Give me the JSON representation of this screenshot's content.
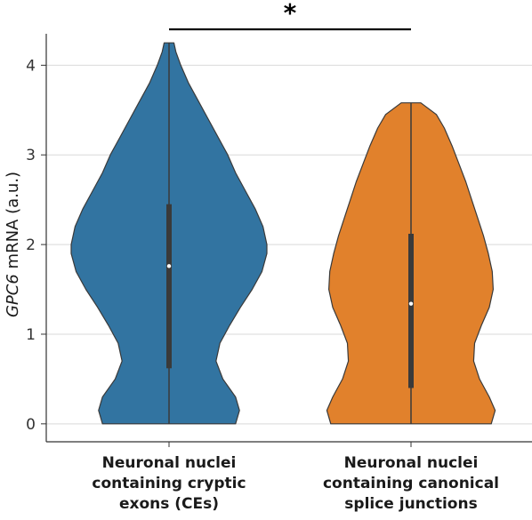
{
  "chart_data": {
    "type": "violin",
    "title": "",
    "ylabel_italic": "GPC6",
    "ylabel_rest": " mRNA (a.u.)",
    "xlabel": "",
    "ylim": [
      -0.2,
      4.45
    ],
    "yticks": [
      "0",
      "1",
      "2",
      "3",
      "4"
    ],
    "grid": "horizontal",
    "legend": "none",
    "categories": [
      {
        "lines": [
          "Neuronal nuclei",
          "containing cryptic",
          "exons (CEs)"
        ]
      },
      {
        "lines": [
          "Neuronal nuclei",
          "containing canonical",
          "splice junctions"
        ]
      }
    ],
    "series": [
      {
        "color": "#3274a1",
        "min": 0,
        "max": 4.25,
        "q1": 0.62,
        "median": 1.76,
        "q3": 2.45,
        "density": [
          [
            0,
            0.68
          ],
          [
            0.15,
            0.72
          ],
          [
            0.3,
            0.68
          ],
          [
            0.5,
            0.55
          ],
          [
            0.7,
            0.48
          ],
          [
            0.9,
            0.52
          ],
          [
            1.1,
            0.62
          ],
          [
            1.3,
            0.73
          ],
          [
            1.5,
            0.85
          ],
          [
            1.7,
            0.95
          ],
          [
            1.9,
            1.0
          ],
          [
            2.0,
            1.0
          ],
          [
            2.2,
            0.96
          ],
          [
            2.4,
            0.88
          ],
          [
            2.6,
            0.78
          ],
          [
            2.8,
            0.68
          ],
          [
            3.0,
            0.6
          ],
          [
            3.2,
            0.5
          ],
          [
            3.4,
            0.4
          ],
          [
            3.6,
            0.3
          ],
          [
            3.8,
            0.2
          ],
          [
            4.0,
            0.12
          ],
          [
            4.15,
            0.07
          ],
          [
            4.25,
            0.05
          ]
        ]
      },
      {
        "color": "#e1812c",
        "min": 0,
        "max": 3.58,
        "q1": 0.4,
        "median": 1.34,
        "q3": 2.12,
        "density": [
          [
            0,
            0.82
          ],
          [
            0.15,
            0.86
          ],
          [
            0.3,
            0.8
          ],
          [
            0.5,
            0.7
          ],
          [
            0.7,
            0.64
          ],
          [
            0.9,
            0.65
          ],
          [
            1.1,
            0.72
          ],
          [
            1.3,
            0.8
          ],
          [
            1.5,
            0.84
          ],
          [
            1.7,
            0.83
          ],
          [
            1.9,
            0.79
          ],
          [
            2.1,
            0.74
          ],
          [
            2.3,
            0.68
          ],
          [
            2.5,
            0.62
          ],
          [
            2.7,
            0.56
          ],
          [
            2.9,
            0.49
          ],
          [
            3.1,
            0.42
          ],
          [
            3.3,
            0.34
          ],
          [
            3.45,
            0.26
          ],
          [
            3.58,
            0.1
          ]
        ]
      }
    ],
    "significance": {
      "between": [
        0,
        1
      ],
      "label": "*"
    }
  }
}
